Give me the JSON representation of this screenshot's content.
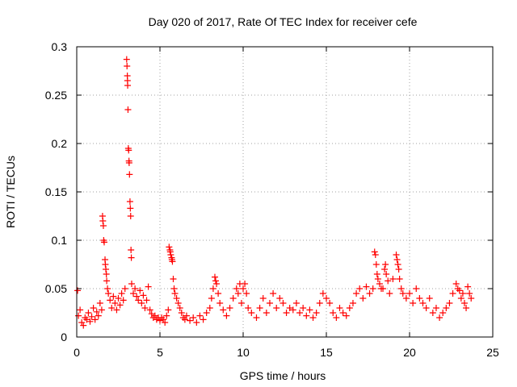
{
  "chart_data": {
    "type": "scatter",
    "title": "Day 020 of 2017, Rate Of TEC Index for receiver cefe",
    "xlabel": "GPS time / hours",
    "ylabel": "ROTI / TECUs",
    "xlim": [
      0,
      25
    ],
    "ylim": [
      0,
      0.3
    ],
    "xticks": [
      0,
      5,
      10,
      15,
      20,
      25
    ],
    "xtick_labels": [
      "0",
      "5",
      "10",
      "15",
      "20",
      "25"
    ],
    "yticks": [
      0,
      0.05,
      0.1,
      0.15,
      0.2,
      0.25,
      0.3
    ],
    "ytick_labels": [
      "0",
      "0.05",
      "0.1",
      "0.15",
      "0.2",
      "0.25",
      "0.3"
    ],
    "grid": true,
    "marker": "+",
    "series": [
      {
        "name": "ROTI",
        "color": "#ff0000",
        "points": [
          [
            0.05,
            0.048
          ],
          [
            0.1,
            0.022
          ],
          [
            0.2,
            0.028
          ],
          [
            0.3,
            0.015
          ],
          [
            0.4,
            0.012
          ],
          [
            0.5,
            0.02
          ],
          [
            0.6,
            0.018
          ],
          [
            0.7,
            0.025
          ],
          [
            0.8,
            0.016
          ],
          [
            0.9,
            0.021
          ],
          [
            1.0,
            0.03
          ],
          [
            1.1,
            0.018
          ],
          [
            1.2,
            0.026
          ],
          [
            1.3,
            0.022
          ],
          [
            1.4,
            0.035
          ],
          [
            1.5,
            0.028
          ],
          [
            1.55,
            0.125
          ],
          [
            1.57,
            0.12
          ],
          [
            1.6,
            0.115
          ],
          [
            1.62,
            0.1
          ],
          [
            1.65,
            0.098
          ],
          [
            1.7,
            0.08
          ],
          [
            1.72,
            0.075
          ],
          [
            1.75,
            0.07
          ],
          [
            1.78,
            0.065
          ],
          [
            1.8,
            0.058
          ],
          [
            1.85,
            0.05
          ],
          [
            1.9,
            0.045
          ],
          [
            2.0,
            0.038
          ],
          [
            2.1,
            0.03
          ],
          [
            2.2,
            0.042
          ],
          [
            2.3,
            0.035
          ],
          [
            2.4,
            0.028
          ],
          [
            2.5,
            0.04
          ],
          [
            2.6,
            0.033
          ],
          [
            2.7,
            0.045
          ],
          [
            2.8,
            0.038
          ],
          [
            2.9,
            0.05
          ],
          [
            3.0,
            0.287
          ],
          [
            3.02,
            0.28
          ],
          [
            3.04,
            0.27
          ],
          [
            3.05,
            0.265
          ],
          [
            3.06,
            0.26
          ],
          [
            3.08,
            0.235
          ],
          [
            3.1,
            0.195
          ],
          [
            3.12,
            0.193
          ],
          [
            3.14,
            0.182
          ],
          [
            3.15,
            0.18
          ],
          [
            3.17,
            0.168
          ],
          [
            3.2,
            0.14
          ],
          [
            3.22,
            0.133
          ],
          [
            3.24,
            0.125
          ],
          [
            3.26,
            0.09
          ],
          [
            3.28,
            0.082
          ],
          [
            3.3,
            0.055
          ],
          [
            3.4,
            0.045
          ],
          [
            3.5,
            0.05
          ],
          [
            3.6,
            0.042
          ],
          [
            3.7,
            0.038
          ],
          [
            3.8,
            0.048
          ],
          [
            3.9,
            0.035
          ],
          [
            4.0,
            0.043
          ],
          [
            4.1,
            0.03
          ],
          [
            4.2,
            0.038
          ],
          [
            4.3,
            0.052
          ],
          [
            4.4,
            0.028
          ],
          [
            4.5,
            0.024
          ],
          [
            4.6,
            0.02
          ],
          [
            4.7,
            0.022
          ],
          [
            4.8,
            0.018
          ],
          [
            4.9,
            0.02
          ],
          [
            5.0,
            0.017
          ],
          [
            5.1,
            0.02
          ],
          [
            5.2,
            0.018
          ],
          [
            5.3,
            0.015
          ],
          [
            5.4,
            0.022
          ],
          [
            5.5,
            0.028
          ],
          [
            5.55,
            0.093
          ],
          [
            5.6,
            0.09
          ],
          [
            5.62,
            0.088
          ],
          [
            5.65,
            0.085
          ],
          [
            5.7,
            0.082
          ],
          [
            5.72,
            0.08
          ],
          [
            5.75,
            0.078
          ],
          [
            5.8,
            0.06
          ],
          [
            5.85,
            0.05
          ],
          [
            5.9,
            0.045
          ],
          [
            6.0,
            0.04
          ],
          [
            6.1,
            0.035
          ],
          [
            6.2,
            0.03
          ],
          [
            6.3,
            0.025
          ],
          [
            6.4,
            0.02
          ],
          [
            6.5,
            0.018
          ],
          [
            6.6,
            0.022
          ],
          [
            6.8,
            0.017
          ],
          [
            7.0,
            0.02
          ],
          [
            7.2,
            0.015
          ],
          [
            7.4,
            0.022
          ],
          [
            7.6,
            0.018
          ],
          [
            7.8,
            0.025
          ],
          [
            8.0,
            0.03
          ],
          [
            8.1,
            0.04
          ],
          [
            8.2,
            0.05
          ],
          [
            8.3,
            0.062
          ],
          [
            8.35,
            0.058
          ],
          [
            8.4,
            0.055
          ],
          [
            8.5,
            0.045
          ],
          [
            8.6,
            0.035
          ],
          [
            8.8,
            0.028
          ],
          [
            9.0,
            0.022
          ],
          [
            9.2,
            0.03
          ],
          [
            9.4,
            0.04
          ],
          [
            9.6,
            0.05
          ],
          [
            9.7,
            0.045
          ],
          [
            9.8,
            0.055
          ],
          [
            9.9,
            0.035
          ],
          [
            10.0,
            0.05
          ],
          [
            10.1,
            0.055
          ],
          [
            10.2,
            0.045
          ],
          [
            10.3,
            0.03
          ],
          [
            10.5,
            0.025
          ],
          [
            10.8,
            0.02
          ],
          [
            11.0,
            0.03
          ],
          [
            11.2,
            0.04
          ],
          [
            11.4,
            0.025
          ],
          [
            11.6,
            0.035
          ],
          [
            11.8,
            0.045
          ],
          [
            12.0,
            0.03
          ],
          [
            12.2,
            0.04
          ],
          [
            12.4,
            0.035
          ],
          [
            12.6,
            0.025
          ],
          [
            12.8,
            0.03
          ],
          [
            13.0,
            0.028
          ],
          [
            13.2,
            0.035
          ],
          [
            13.4,
            0.025
          ],
          [
            13.6,
            0.03
          ],
          [
            13.8,
            0.022
          ],
          [
            14.0,
            0.028
          ],
          [
            14.2,
            0.02
          ],
          [
            14.4,
            0.025
          ],
          [
            14.6,
            0.035
          ],
          [
            14.8,
            0.045
          ],
          [
            15.0,
            0.04
          ],
          [
            15.2,
            0.035
          ],
          [
            15.4,
            0.025
          ],
          [
            15.6,
            0.02
          ],
          [
            15.8,
            0.03
          ],
          [
            16.0,
            0.025
          ],
          [
            16.2,
            0.022
          ],
          [
            16.4,
            0.03
          ],
          [
            16.6,
            0.035
          ],
          [
            16.8,
            0.045
          ],
          [
            17.0,
            0.05
          ],
          [
            17.2,
            0.04
          ],
          [
            17.4,
            0.052
          ],
          [
            17.6,
            0.045
          ],
          [
            17.8,
            0.05
          ],
          [
            17.9,
            0.088
          ],
          [
            17.95,
            0.085
          ],
          [
            18.0,
            0.075
          ],
          [
            18.05,
            0.065
          ],
          [
            18.1,
            0.06
          ],
          [
            18.2,
            0.055
          ],
          [
            18.3,
            0.05
          ],
          [
            18.4,
            0.05
          ],
          [
            18.5,
            0.07
          ],
          [
            18.55,
            0.075
          ],
          [
            18.6,
            0.065
          ],
          [
            18.7,
            0.058
          ],
          [
            18.8,
            0.045
          ],
          [
            19.0,
            0.06
          ],
          [
            19.2,
            0.085
          ],
          [
            19.25,
            0.08
          ],
          [
            19.3,
            0.075
          ],
          [
            19.35,
            0.07
          ],
          [
            19.4,
            0.06
          ],
          [
            19.5,
            0.05
          ],
          [
            19.6,
            0.045
          ],
          [
            19.8,
            0.04
          ],
          [
            20.0,
            0.045
          ],
          [
            20.2,
            0.035
          ],
          [
            20.4,
            0.05
          ],
          [
            20.6,
            0.04
          ],
          [
            20.8,
            0.035
          ],
          [
            21.0,
            0.03
          ],
          [
            21.2,
            0.04
          ],
          [
            21.4,
            0.025
          ],
          [
            21.6,
            0.03
          ],
          [
            21.8,
            0.02
          ],
          [
            22.0,
            0.025
          ],
          [
            22.2,
            0.03
          ],
          [
            22.4,
            0.035
          ],
          [
            22.6,
            0.045
          ],
          [
            22.8,
            0.055
          ],
          [
            22.9,
            0.05
          ],
          [
            23.0,
            0.048
          ],
          [
            23.1,
            0.04
          ],
          [
            23.2,
            0.045
          ],
          [
            23.3,
            0.035
          ],
          [
            23.4,
            0.03
          ],
          [
            23.5,
            0.052
          ],
          [
            23.6,
            0.045
          ],
          [
            23.7,
            0.04
          ]
        ]
      }
    ]
  }
}
